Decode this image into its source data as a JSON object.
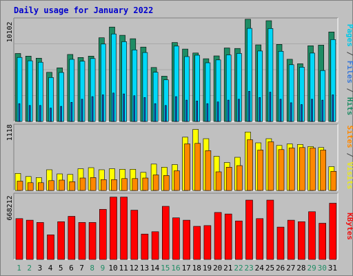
{
  "chart_data": {
    "type": "bar",
    "title": "Daily usage for January 2022",
    "categories": [
      "1",
      "2",
      "3",
      "4",
      "5",
      "6",
      "7",
      "8",
      "9",
      "10",
      "11",
      "12",
      "13",
      "14",
      "15",
      "16",
      "17",
      "18",
      "19",
      "20",
      "21",
      "22",
      "23",
      "24",
      "25",
      "26",
      "27",
      "28",
      "29",
      "30",
      "31"
    ],
    "weekend_days": [
      1,
      2,
      8,
      9,
      15,
      16,
      22,
      23,
      29,
      30
    ],
    "panels": [
      {
        "id": "top",
        "tick_label": "10102",
        "tick_value": 10102,
        "ylim": [
          0,
          11700
        ],
        "right_label_parts": [
          {
            "text": "Pages",
            "color": "#00c8e8"
          },
          {
            "text": " / ",
            "color": "#444444"
          },
          {
            "text": "Files",
            "color": "#3a78d8"
          },
          {
            "text": " / ",
            "color": "#444444"
          },
          {
            "text": "Hits",
            "color": "#1e8c64"
          }
        ],
        "series": [
          {
            "name": "Hits",
            "color": "#1e8c64",
            "values": [
              7680,
              7390,
              7150,
              5550,
              6060,
              7570,
              7230,
              7390,
              9460,
              10670,
              9740,
              9350,
              8410,
              6100,
              5120,
              8920,
              8180,
              7740,
              7090,
              7410,
              8310,
              8250,
              11550,
              8660,
              11390,
              8710,
              7030,
              6520,
              8560,
              8630,
              10120
            ]
          },
          {
            "name": "Files",
            "color": "#00d8f8",
            "values": [
              7240,
              6860,
              6690,
              4970,
              5540,
              7020,
              6810,
              7110,
              8750,
              9890,
              9020,
              8090,
              7790,
              5560,
              4700,
              8520,
              7330,
              7490,
              6630,
              6960,
              7520,
              7690,
              10520,
              7960,
              10510,
              7930,
              6410,
              6140,
              7730,
              5760,
              9260
            ]
          },
          {
            "name": "Pages",
            "color": "#2050c0",
            "values": [
              2010,
              1810,
              1810,
              1510,
              1710,
              2160,
              2510,
              2810,
              3010,
              3210,
              3110,
              2910,
              2710,
              2010,
              1810,
              2810,
              2410,
              2310,
              2010,
              2210,
              2410,
              2510,
              3410,
              2710,
              3310,
              2510,
              2110,
              1910,
              2510,
              2410,
              3010
            ]
          }
        ]
      },
      {
        "id": "middle",
        "tick_label": "1118",
        "tick_value": 1118,
        "ylim": [
          0,
          1280
        ],
        "right_label_parts": [
          {
            "text": "Sites",
            "color": "#ff8800"
          },
          {
            "text": " / ",
            "color": "#444444"
          },
          {
            "text": "Visits",
            "color": "#e8e820"
          }
        ],
        "series": [
          {
            "name": "Visits",
            "color": "#ffff00",
            "values": [
              330,
              270,
              250,
              400,
              320,
              310,
              420,
              440,
              400,
              420,
              410,
              410,
              350,
              510,
              450,
              500,
              1030,
              1180,
              1000,
              660,
              540,
              640,
              1130,
              920,
              1000,
              870,
              900,
              890,
              850,
              830,
              460
            ]
          },
          {
            "name": "Sites",
            "color": "#ff8800",
            "values": [
              180,
              150,
              150,
              190,
              200,
              170,
              240,
              250,
              210,
              210,
              230,
              230,
              240,
              300,
              290,
              380,
              900,
              910,
              770,
              360,
              450,
              480,
              980,
              780,
              940,
              790,
              820,
              830,
              820,
              780,
              370
            ]
          }
        ]
      },
      {
        "id": "bottom",
        "tick_label": "668212",
        "tick_value": 668212,
        "ylim": [
          0,
          860000
        ],
        "right_label_parts": [
          {
            "text": "KBytes",
            "color": "#ee1111"
          }
        ],
        "series": [
          {
            "name": "KBytes",
            "color": "#ff0000",
            "values": [
              530000,
              510000,
              480000,
              320000,
              490000,
              560000,
              480000,
              480000,
              650000,
              810000,
              810000,
              640000,
              330000,
              360000,
              690000,
              540000,
              510000,
              430000,
              440000,
              610000,
              590000,
              500000,
              770000,
              530000,
              770000,
              420000,
              510000,
              490000,
              620000,
              470000,
              730000
            ]
          }
        ]
      }
    ]
  }
}
